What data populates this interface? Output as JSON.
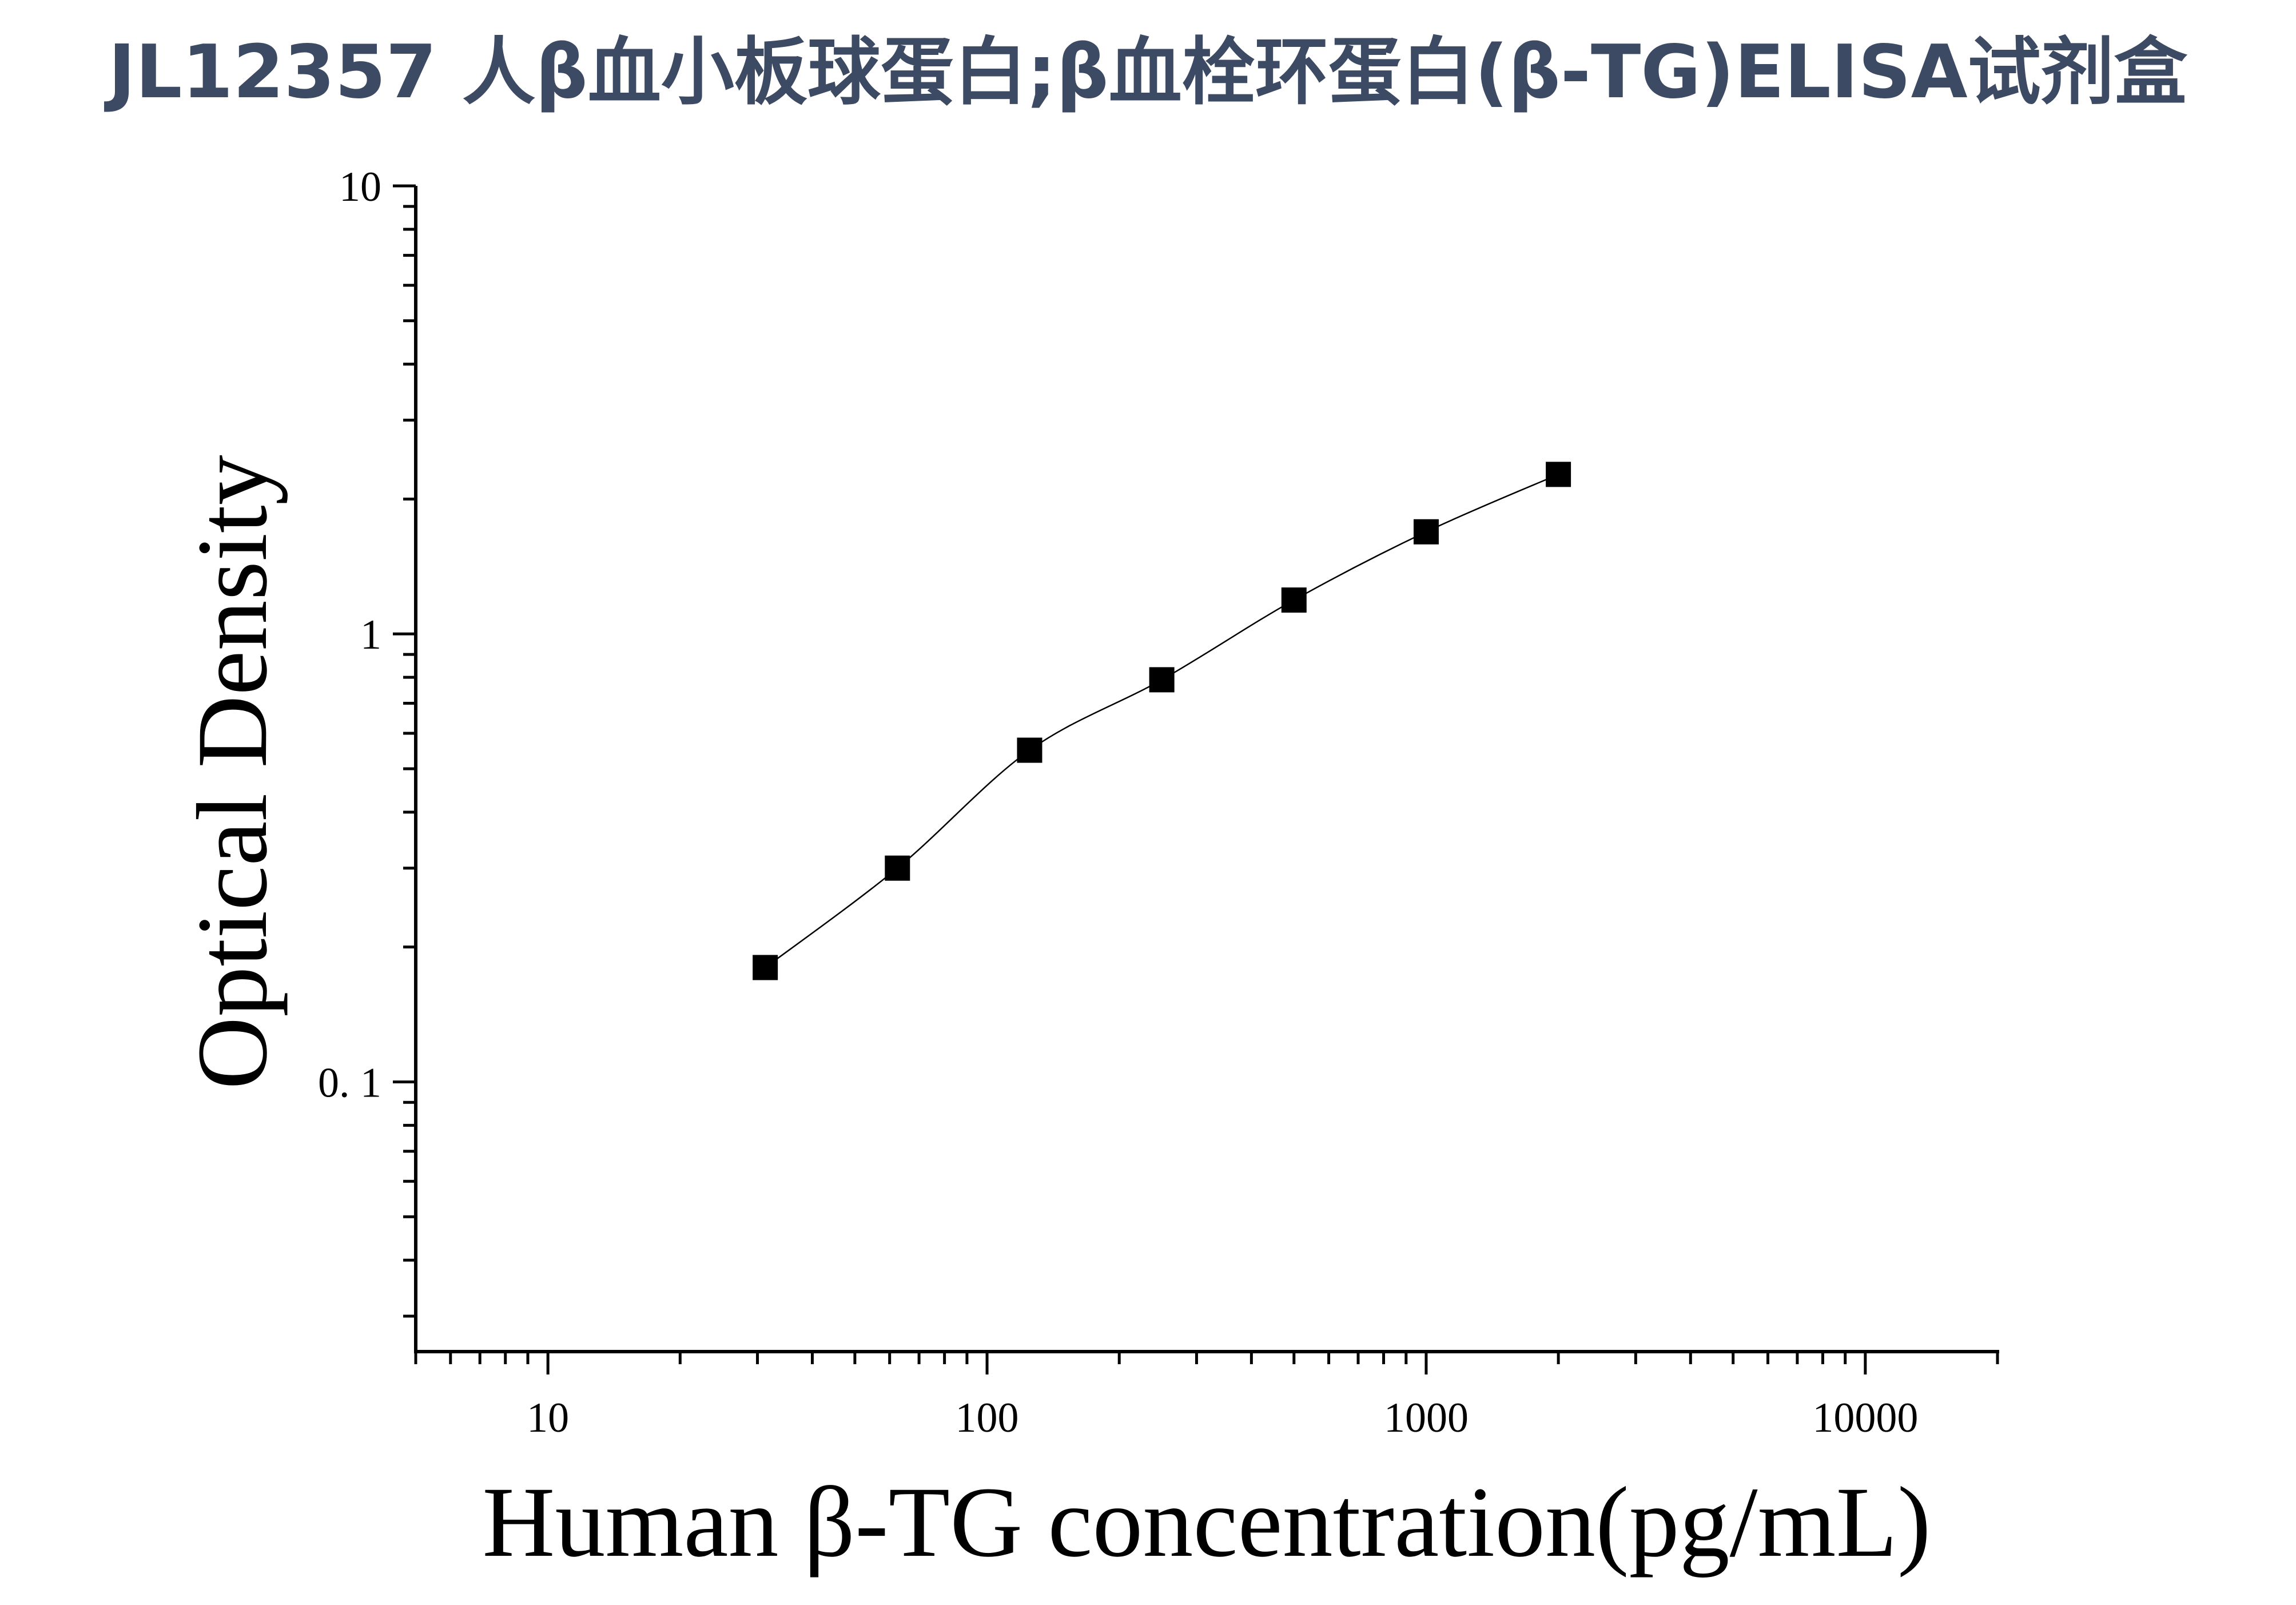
{
  "title": "JL12357 人β血小板球蛋白;β血栓环蛋白(β-TG)ELISA试剂盒",
  "chart_data": {
    "type": "scatter",
    "xlabel": "Human β-TG concentration(pg/mL)",
    "ylabel": "Optical Density",
    "x_scale": "log",
    "y_scale": "log",
    "xlim": [
      5,
      20000
    ],
    "ylim": [
      0.025,
      10
    ],
    "x_ticks": [
      {
        "value": 10,
        "label": "10"
      },
      {
        "value": 100,
        "label": "100"
      },
      {
        "value": 1000,
        "label": "1000"
      },
      {
        "value": 10000,
        "label": "10000"
      }
    ],
    "y_ticks": [
      {
        "value": 0.1,
        "label": "0. 1"
      },
      {
        "value": 1,
        "label": "1"
      },
      {
        "value": 10,
        "label": "10"
      }
    ],
    "grid": false,
    "series": [
      {
        "marker": "square",
        "color": "#000000",
        "x": [
          31.25,
          62.5,
          125,
          250,
          500,
          1000,
          2000
        ],
        "y": [
          0.18,
          0.3,
          0.55,
          0.79,
          1.19,
          1.69,
          2.27
        ],
        "fit_line": true
      }
    ]
  }
}
